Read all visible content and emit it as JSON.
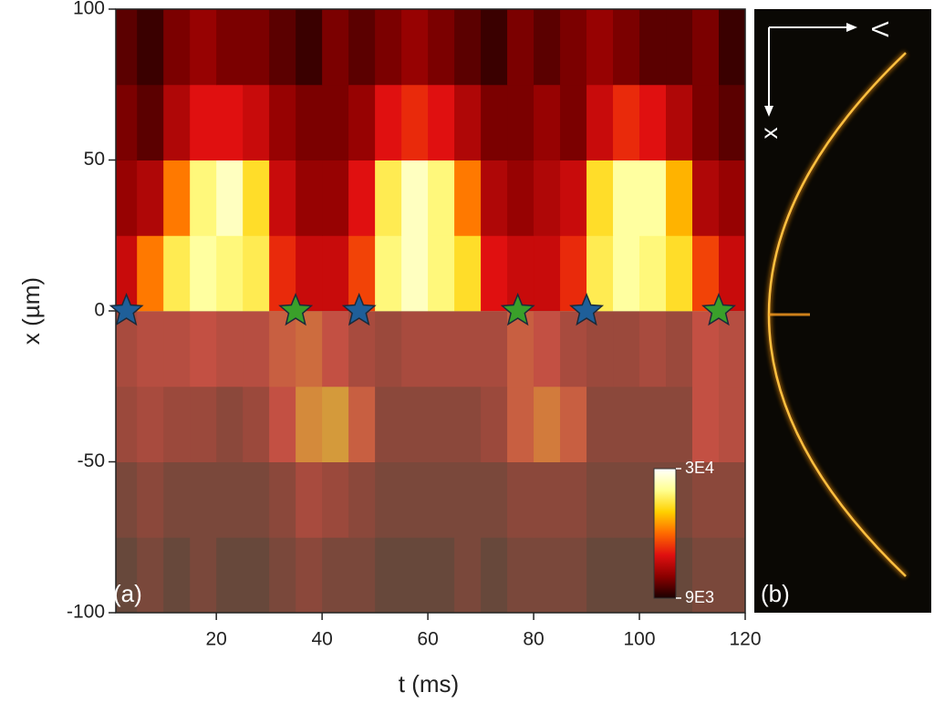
{
  "chart_data": {
    "type": "heatmap",
    "xlabel": "t (ms)",
    "ylabel": "x (µm)",
    "panel_label": "(a)",
    "xlim": [
      1,
      120
    ],
    "ylim": [
      -100,
      100
    ],
    "xticks": [
      20,
      40,
      60,
      80,
      100,
      120
    ],
    "yticks": [
      -100,
      -50,
      0,
      50,
      100
    ],
    "x_bins": [
      0,
      5,
      10,
      15,
      20,
      25,
      30,
      35,
      40,
      45,
      50,
      55,
      60,
      65,
      70,
      75,
      80,
      85,
      90,
      95,
      100,
      105,
      110,
      115,
      120
    ],
    "y_bins": [
      -100,
      -75,
      -50,
      -25,
      0,
      25,
      50,
      75,
      100
    ],
    "z": [
      [
        10000,
        11000,
        10000,
        11000,
        10000,
        10000,
        11000,
        12000,
        11000,
        11000,
        10000,
        10000,
        10000,
        11000,
        10000,
        11000,
        11000,
        11000,
        10000,
        10000,
        10000,
        10000,
        11000,
        11000
      ],
      [
        11000,
        12000,
        11000,
        11000,
        11000,
        11000,
        12000,
        14000,
        13000,
        12000,
        11000,
        11000,
        11000,
        11000,
        11000,
        12000,
        12000,
        12000,
        11000,
        11000,
        11000,
        11000,
        12000,
        12000
      ],
      [
        13000,
        14000,
        13000,
        13000,
        12000,
        13000,
        16000,
        20000,
        21000,
        17000,
        12000,
        12000,
        12000,
        12000,
        13000,
        17000,
        19000,
        17000,
        12000,
        12000,
        12000,
        12000,
        16000,
        15000
      ],
      [
        14000,
        15000,
        15000,
        16000,
        15000,
        15000,
        17000,
        18000,
        16000,
        14000,
        13000,
        14000,
        14000,
        14000,
        14000,
        17000,
        16000,
        14000,
        13000,
        13000,
        14000,
        13000,
        16000,
        15000
      ],
      [
        15000,
        20000,
        25000,
        27000,
        26000,
        25000,
        17000,
        15000,
        15000,
        18000,
        26000,
        28000,
        26000,
        24000,
        16000,
        15000,
        15000,
        17000,
        25000,
        27000,
        26000,
        24000,
        18000,
        15000
      ],
      [
        13000,
        14000,
        20000,
        26000,
        28000,
        24000,
        15000,
        13000,
        13000,
        16000,
        25000,
        28000,
        26000,
        20000,
        14000,
        13000,
        14000,
        15000,
        24000,
        27000,
        27000,
        22000,
        14000,
        13000
      ],
      [
        12000,
        11000,
        14000,
        16000,
        16000,
        15000,
        13000,
        12000,
        12000,
        13000,
        16000,
        17000,
        16000,
        14000,
        12000,
        12000,
        13000,
        12000,
        15000,
        17000,
        16000,
        14000,
        12000,
        11000
      ],
      [
        11000,
        10000,
        12000,
        13000,
        12000,
        12000,
        11000,
        10000,
        12000,
        11000,
        12000,
        13000,
        12000,
        11000,
        10000,
        12000,
        11000,
        12000,
        13000,
        12000,
        11000,
        11000,
        12000,
        10000
      ]
    ],
    "colormap": [
      "#1a0000",
      "#8b0000",
      "#e01010",
      "#ff6a00",
      "#ffd000",
      "#ffff90",
      "#ffffff"
    ],
    "clim": [
      9000,
      30000
    ],
    "cticks": [
      {
        "value": 9000,
        "label": "9E3"
      },
      {
        "value": 30000,
        "label": "3E4"
      }
    ],
    "series": [
      {
        "color": "#1f5f99",
        "x": [
          3,
          47,
          90
        ],
        "y": [
          0,
          0,
          0
        ]
      },
      {
        "color": "#3aa02a",
        "x": [
          35,
          77,
          115
        ],
        "y": [
          0,
          0,
          0
        ]
      }
    ]
  },
  "panel_b": {
    "label": "(b)",
    "axis_labels": [
      "V",
      "x"
    ]
  }
}
